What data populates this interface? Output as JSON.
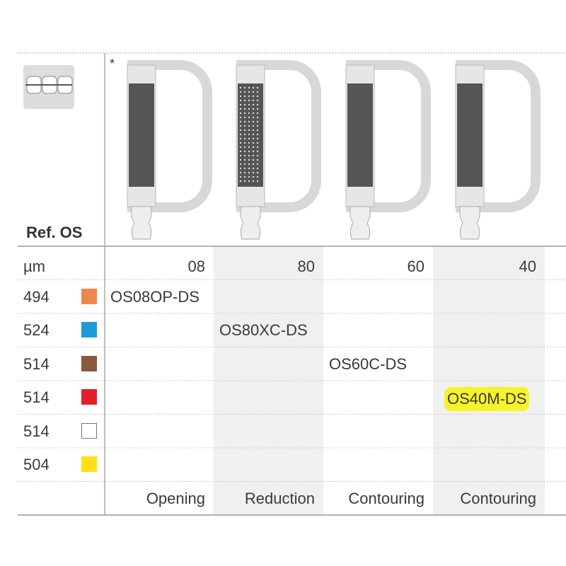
{
  "header": {
    "asterisk": "*",
    "ref_label": "Ref. OS",
    "unit": "µm",
    "thickness": [
      "08",
      "80",
      "60",
      "40"
    ]
  },
  "rows": [
    {
      "code": "494",
      "color": "#f0874a",
      "products": [
        "OS08OP-DS",
        null,
        null,
        null
      ]
    },
    {
      "code": "524",
      "color": "#1e9ad6",
      "products": [
        null,
        "OS80XC-DS",
        null,
        null
      ]
    },
    {
      "code": "514",
      "color": "#8a5a3a",
      "products": [
        null,
        null,
        "OS60C-DS",
        null
      ]
    },
    {
      "code": "514",
      "color": "#e32028",
      "products": [
        null,
        null,
        null,
        "OS40M-DS"
      ],
      "highlight": true
    },
    {
      "code": "514",
      "color": "#ffffff",
      "products": [
        null,
        null,
        null,
        null
      ]
    },
    {
      "code": "504",
      "color": "#ffe014",
      "products": [
        null,
        null,
        null,
        null
      ]
    }
  ],
  "footer": [
    "Opening",
    "Reduction",
    "Contouring",
    "Contouring"
  ]
}
